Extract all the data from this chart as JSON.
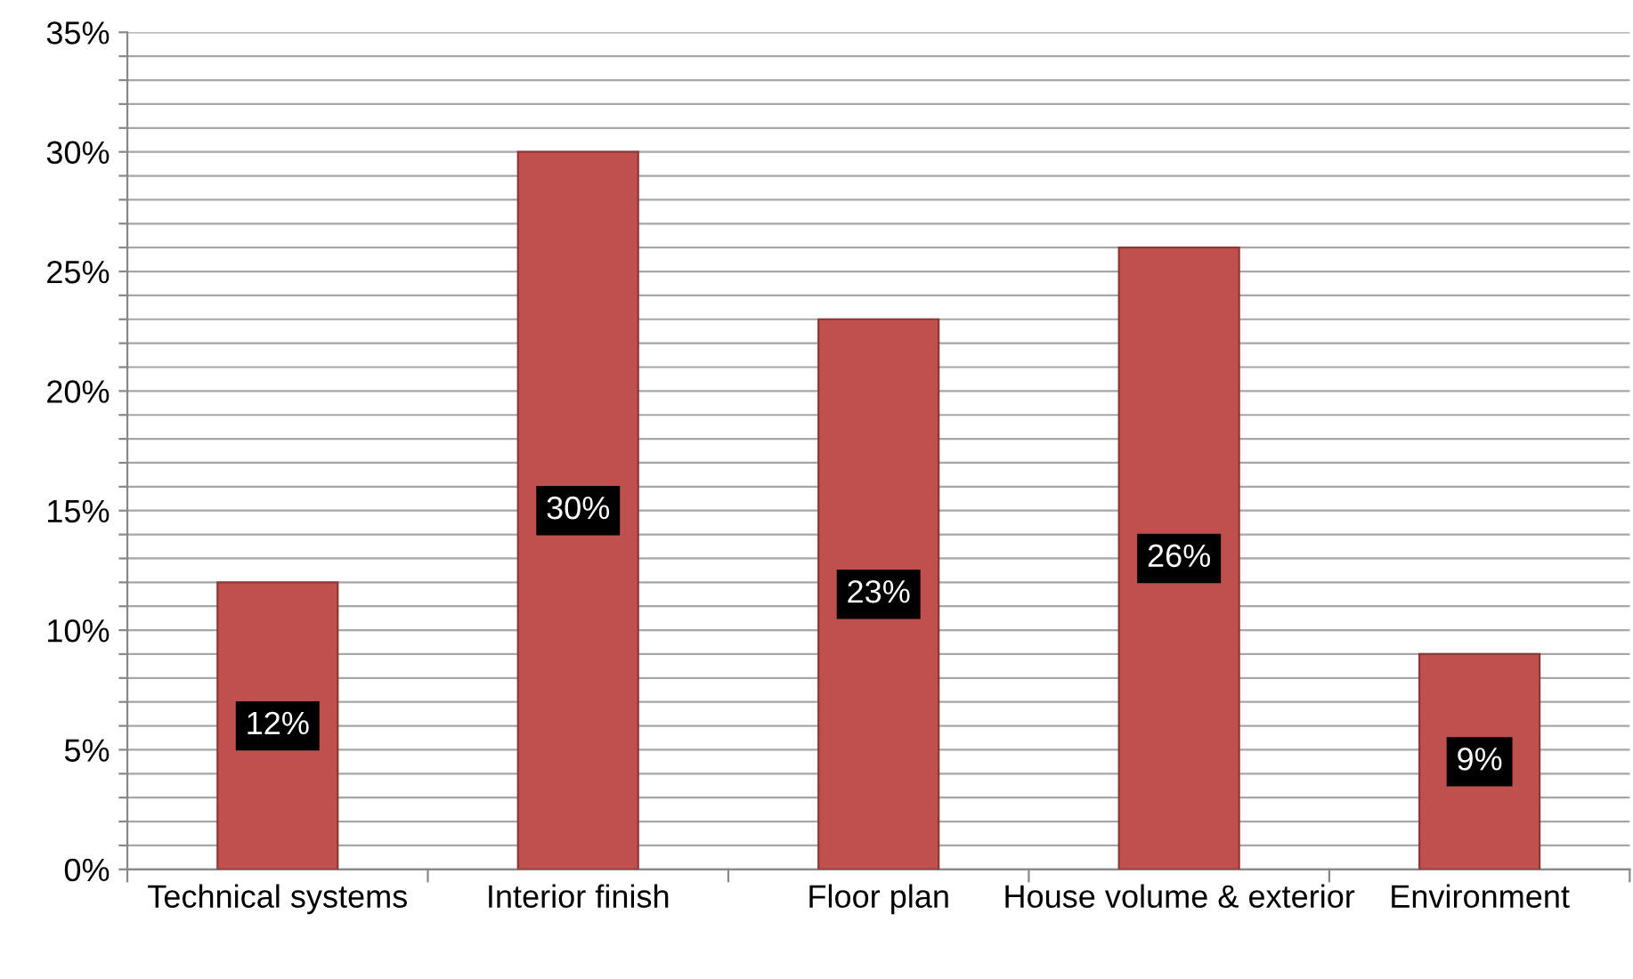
{
  "chart_data": {
    "type": "bar",
    "categories": [
      "Technical systems",
      "Interior finish",
      "Floor plan",
      "House volume & exterior",
      "Environment"
    ],
    "values": [
      12,
      30,
      23,
      26,
      9
    ],
    "value_labels": [
      "12%",
      "30%",
      "23%",
      "26%",
      "9%"
    ],
    "color": "#c0504d",
    "ylim": [
      0,
      35
    ],
    "yticks": [
      {
        "value": 0,
        "label": "0%"
      },
      {
        "value": 1,
        "label": null
      },
      {
        "value": 2,
        "label": null
      },
      {
        "value": 3,
        "label": null
      },
      {
        "value": 4,
        "label": null
      },
      {
        "value": 5,
        "label": "5%"
      },
      {
        "value": 6,
        "label": null
      },
      {
        "value": 7,
        "label": null
      },
      {
        "value": 8,
        "label": null
      },
      {
        "value": 9,
        "label": null
      },
      {
        "value": 10,
        "label": "10%"
      },
      {
        "value": 11,
        "label": null
      },
      {
        "value": 12,
        "label": null
      },
      {
        "value": 13,
        "label": null
      },
      {
        "value": 14,
        "label": null
      },
      {
        "value": 15,
        "label": "15%"
      },
      {
        "value": 16,
        "label": null
      },
      {
        "value": 17,
        "label": null
      },
      {
        "value": 18,
        "label": null
      },
      {
        "value": 19,
        "label": null
      },
      {
        "value": 20,
        "label": "20%"
      },
      {
        "value": 21,
        "label": null
      },
      {
        "value": 22,
        "label": null
      },
      {
        "value": 23,
        "label": null
      },
      {
        "value": 24,
        "label": null
      },
      {
        "value": 25,
        "label": "25%"
      },
      {
        "value": 26,
        "label": null
      },
      {
        "value": 27,
        "label": null
      },
      {
        "value": 28,
        "label": null
      },
      {
        "value": 29,
        "label": null
      },
      {
        "value": 30,
        "label": "30%"
      },
      {
        "value": 31,
        "label": null
      },
      {
        "value": 32,
        "label": null
      },
      {
        "value": 33,
        "label": null
      },
      {
        "value": 34,
        "label": null
      },
      {
        "value": 35,
        "label": "35%"
      }
    ],
    "grid": "y"
  }
}
